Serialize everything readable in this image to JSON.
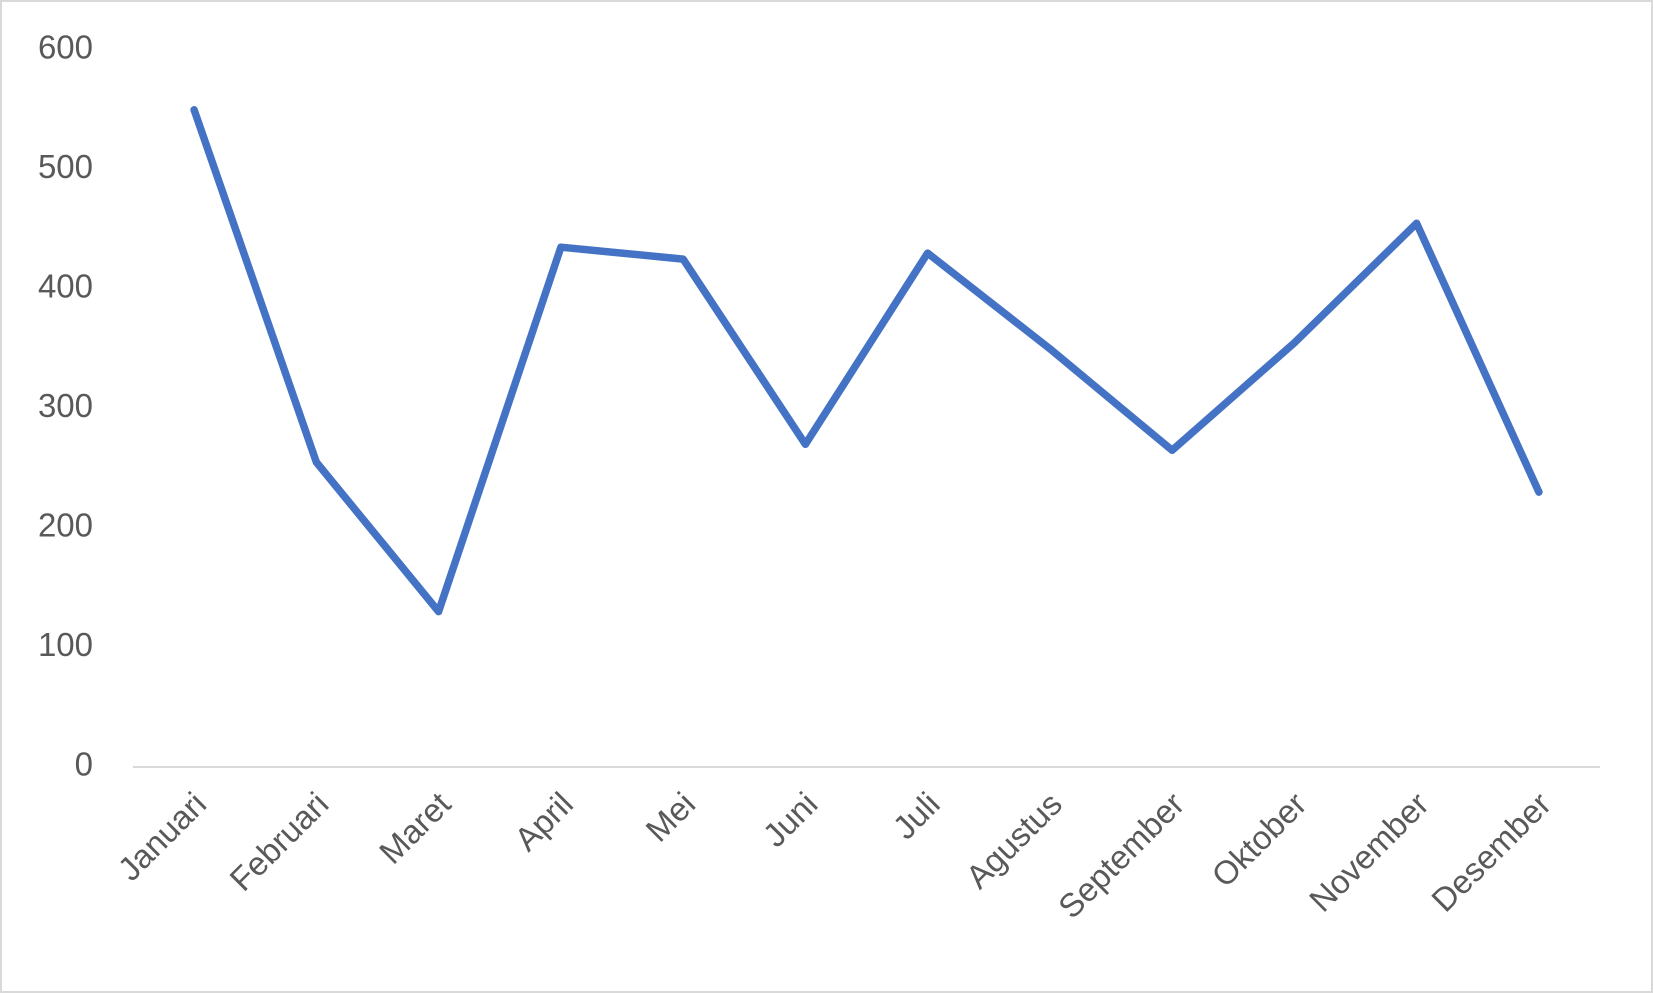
{
  "chart_data": {
    "type": "line",
    "categories": [
      "Januari",
      "Februari",
      "Maret",
      "April",
      "Mei",
      "Juni",
      "Juli",
      "Agustus",
      "September",
      "Oktober",
      "November",
      "Desember"
    ],
    "values": [
      550,
      255,
      130,
      435,
      425,
      270,
      430,
      350,
      265,
      355,
      455,
      230
    ],
    "color": "#4472c4",
    "ylim": [
      0,
      600
    ],
    "yticks": [
      0,
      100,
      200,
      300,
      400,
      500,
      600
    ],
    "grid": false
  }
}
